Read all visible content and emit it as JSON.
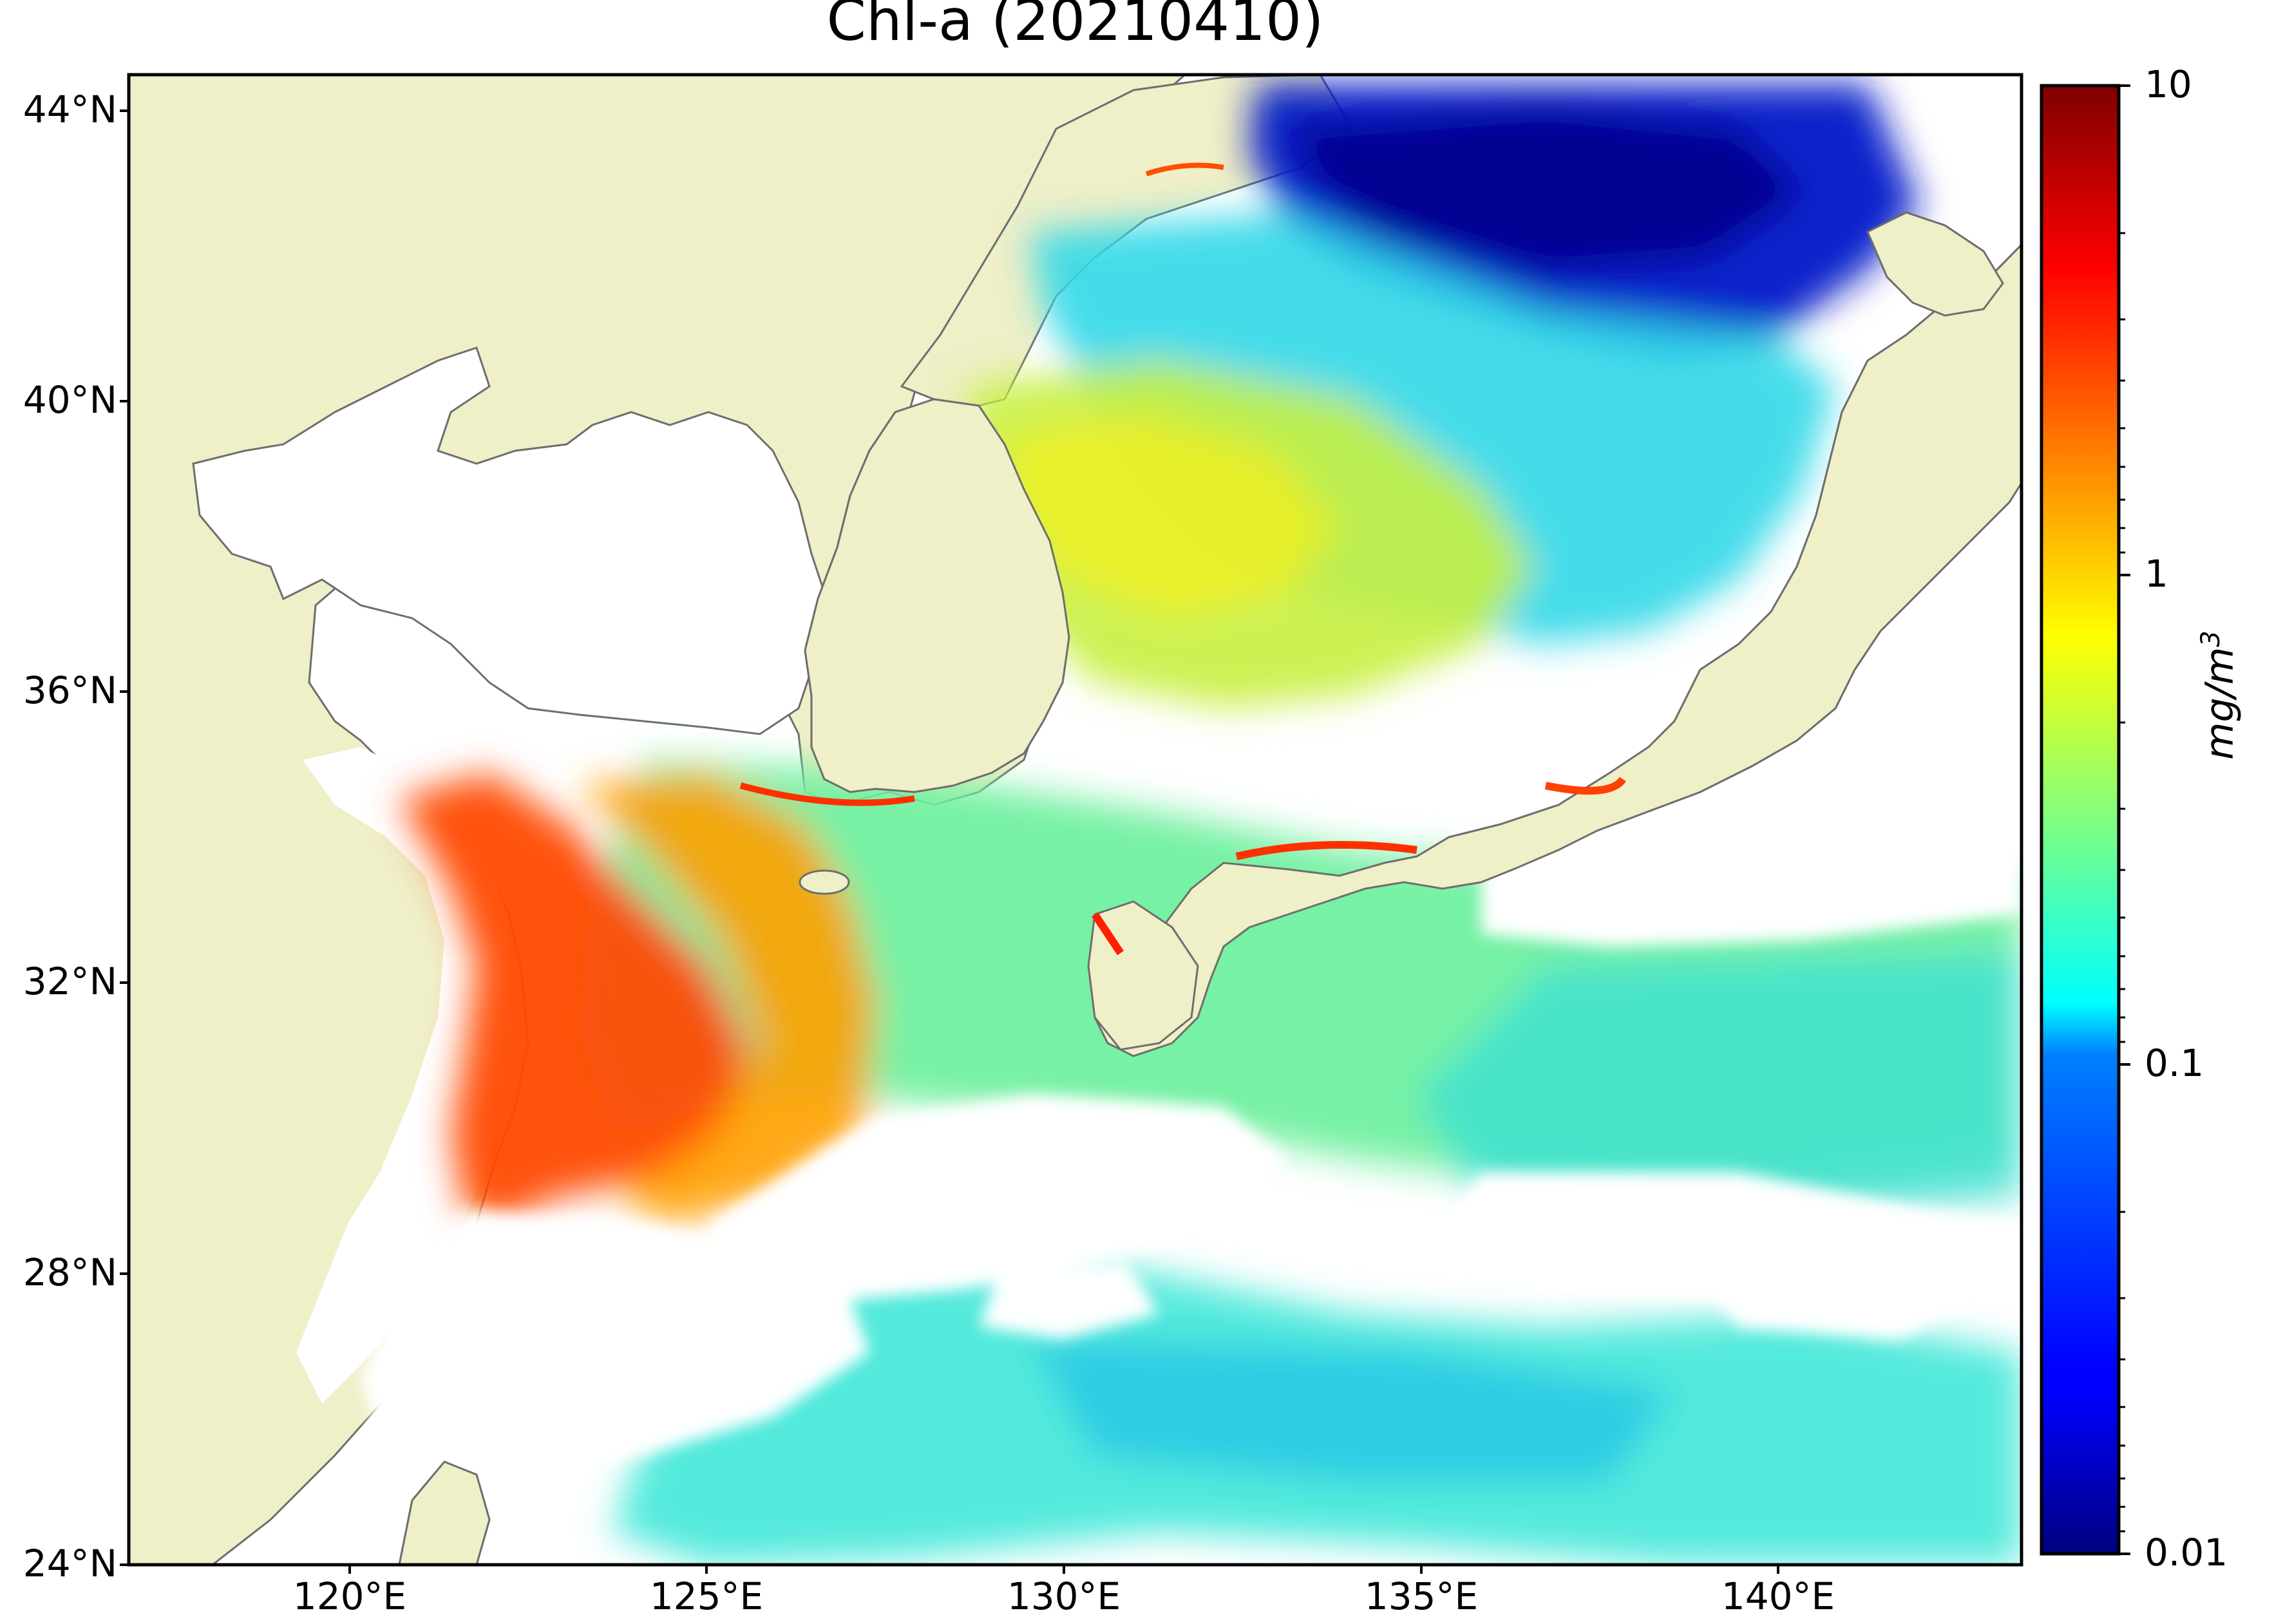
{
  "title": "Chl-a (20210410)",
  "map": {
    "lon_range": [
      116.5,
      143
    ],
    "lat_range": [
      24,
      44.5
    ],
    "lat_ticks": [
      "44°N",
      "40°N",
      "36°N",
      "32°N",
      "28°N",
      "24°N"
    ],
    "lon_ticks": [
      "120°E",
      "125°E",
      "130°E",
      "135°E",
      "140°E"
    ],
    "land_color": "#efefc8",
    "no_data_color": "#ffffff",
    "coastline_color": "#6e6e6e"
  },
  "colorbar": {
    "scale": "log",
    "colormap": "jet",
    "range": [
      0.01,
      10
    ],
    "tick_labels": [
      "10",
      "1",
      "0.1",
      "0.01"
    ],
    "unit": "mg/m",
    "unit_exp": "3"
  }
}
